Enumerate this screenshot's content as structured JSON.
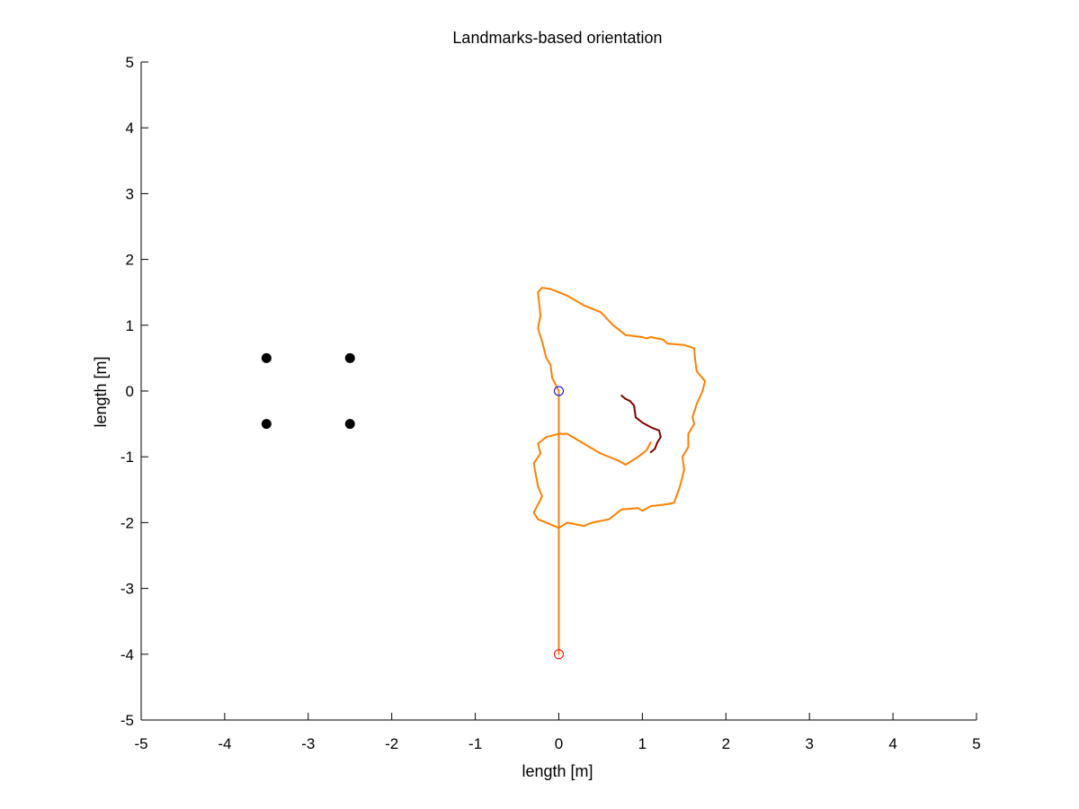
{
  "chart_data": {
    "type": "line",
    "title": "Landmarks-based orientation",
    "xlabel": "length [m]",
    "ylabel": "length [m]",
    "xlim": [
      -5,
      5
    ],
    "ylim": [
      -5,
      5
    ],
    "xticks": [
      -5,
      -4,
      -3,
      -2,
      -1,
      0,
      1,
      2,
      3,
      4,
      5
    ],
    "yticks": [
      -5,
      -4,
      -3,
      -2,
      -1,
      0,
      1,
      2,
      3,
      4,
      5
    ],
    "grid": false,
    "series": [
      {
        "kind": "line",
        "color": "#ff8000",
        "x": [
          0,
          0,
          0,
          0,
          0,
          0,
          0,
          0,
          0,
          0
        ],
        "y": [
          -4.0,
          -3.5,
          -3.0,
          -2.5,
          -2.1,
          -1.5,
          -1.0,
          -0.65,
          -0.3,
          0.0
        ]
      },
      {
        "kind": "line",
        "color": "#ff8000",
        "x": [
          0.0,
          -0.08,
          -0.1,
          -0.15,
          -0.2,
          -0.25,
          -0.22,
          -0.25,
          -0.2,
          -0.1,
          0.0,
          0.1,
          0.3,
          0.5,
          0.65,
          0.8,
          1.0,
          1.05,
          1.1,
          1.25,
          1.3,
          1.5,
          1.62,
          1.63,
          1.65,
          1.75,
          1.72,
          1.65,
          1.6,
          1.62,
          1.55,
          1.55,
          1.48,
          1.5,
          1.45,
          1.38,
          1.3,
          1.1,
          1.0,
          0.95,
          0.75,
          0.6,
          0.4,
          0.3,
          0.1,
          0.0,
          -0.15,
          -0.25,
          -0.3,
          -0.2,
          -0.25,
          -0.3,
          -0.22,
          -0.25,
          -0.15,
          0.0,
          0.1,
          0.3,
          0.5,
          0.7,
          0.8,
          0.95,
          1.05,
          1.1
        ],
        "y": [
          0.0,
          0.2,
          0.4,
          0.5,
          0.75,
          0.95,
          1.15,
          1.5,
          1.57,
          1.55,
          1.5,
          1.45,
          1.3,
          1.2,
          1.0,
          0.85,
          0.82,
          0.8,
          0.82,
          0.78,
          0.72,
          0.7,
          0.65,
          0.5,
          0.3,
          0.15,
          0.0,
          -0.2,
          -0.4,
          -0.5,
          -0.65,
          -0.85,
          -1.0,
          -1.2,
          -1.45,
          -1.7,
          -1.72,
          -1.75,
          -1.82,
          -1.78,
          -1.8,
          -1.95,
          -2.0,
          -2.05,
          -2.0,
          -2.08,
          -2.0,
          -1.95,
          -1.85,
          -1.6,
          -1.45,
          -1.1,
          -0.95,
          -0.8,
          -0.7,
          -0.65,
          -0.65,
          -0.8,
          -0.95,
          -1.05,
          -1.12,
          -1.0,
          -0.9,
          -0.78
        ]
      },
      {
        "kind": "line",
        "color": "#800000",
        "x": [
          0.75,
          0.8,
          0.85,
          0.9,
          0.92,
          1.0,
          1.1,
          1.2,
          1.22,
          1.18,
          1.15,
          1.1
        ],
        "y": [
          -0.07,
          -0.12,
          -0.15,
          -0.22,
          -0.4,
          -0.48,
          -0.55,
          -0.6,
          -0.7,
          -0.78,
          -0.88,
          -0.93
        ]
      },
      {
        "kind": "marker",
        "marker": "filled-circle",
        "color": "#000000",
        "x": [
          -3.5,
          -2.5,
          -3.5,
          -2.5
        ],
        "y": [
          0.5,
          0.5,
          -0.5,
          -0.5
        ]
      },
      {
        "kind": "marker",
        "marker": "open-circle",
        "color": "#0000ff",
        "x": [
          0
        ],
        "y": [
          0
        ]
      },
      {
        "kind": "marker",
        "marker": "open-circle",
        "color": "#ff0000",
        "x": [
          0
        ],
        "y": [
          -4
        ]
      }
    ]
  }
}
